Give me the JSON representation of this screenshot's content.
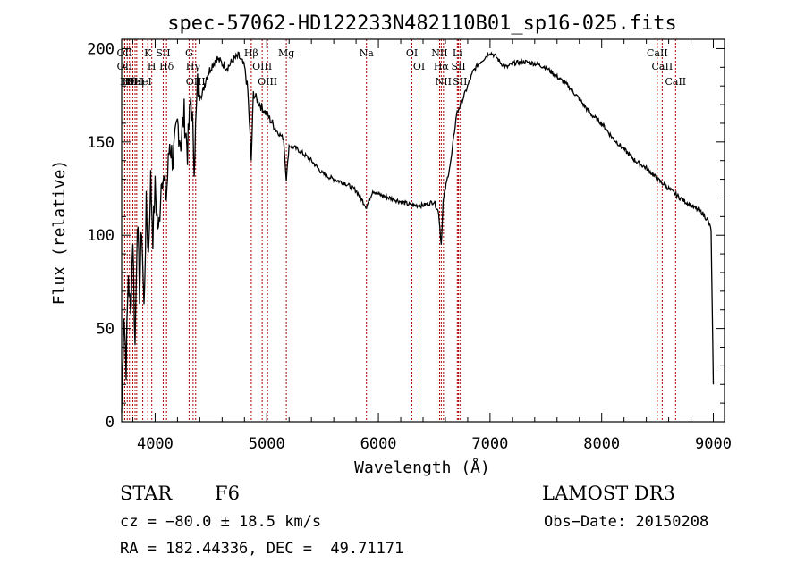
{
  "chart_data": {
    "type": "line",
    "title": "spec-57062-HD122233N482110B01_sp16-025.fits",
    "xlabel": "Wavelength (Å)",
    "ylabel": "Flux (relative)",
    "xlim": [
      3700,
      9100
    ],
    "ylim": [
      0,
      205
    ],
    "xticks": [
      4000,
      5000,
      6000,
      7000,
      8000,
      9000
    ],
    "yticks": [
      0,
      50,
      100,
      150,
      200
    ],
    "grid": false,
    "line_color": "#000000",
    "marker_color": "#aa0000",
    "series": [
      {
        "x": [
          3700,
          3720,
          3740,
          3760,
          3780,
          3800,
          3820,
          3840,
          3860,
          3880,
          3900,
          3920,
          3940,
          3960,
          3980,
          4000,
          4030,
          4060,
          4100,
          4130,
          4160,
          4200,
          4230,
          4260,
          4290,
          4320,
          4350,
          4380,
          4420,
          4460,
          4500,
          4550,
          4600,
          4650,
          4700,
          4750,
          4800,
          4830,
          4861,
          4880,
          4920,
          4960,
          5000,
          5050,
          5100,
          5150,
          5175,
          5200,
          5250,
          5300,
          5400,
          5500,
          5600,
          5700,
          5800,
          5893,
          5950,
          6000,
          6100,
          6200,
          6300,
          6400,
          6500,
          6540,
          6563,
          6580,
          6600,
          6650,
          6700,
          6750,
          6800,
          6850,
          6900,
          6950,
          7000,
          7050,
          7100,
          7150,
          7200,
          7300,
          7400,
          7500,
          7600,
          7700,
          7800,
          7900,
          8000,
          8100,
          8200,
          8300,
          8400,
          8500,
          8600,
          8700,
          8800,
          8900,
          8950,
          8980,
          8990,
          9000
        ],
        "y": [
          5,
          60,
          30,
          80,
          55,
          100,
          40,
          110,
          70,
          105,
          60,
          115,
          90,
          130,
          100,
          125,
          100,
          135,
          120,
          150,
          140,
          160,
          150,
          165,
          145,
          175,
          140,
          180,
          175,
          185,
          190,
          195,
          192,
          190,
          194,
          196,
          190,
          178,
          140,
          176,
          172,
          168,
          165,
          160,
          155,
          152,
          130,
          148,
          147,
          145,
          140,
          133,
          130,
          128,
          124,
          115,
          124,
          122,
          120,
          118,
          116,
          116,
          118,
          112,
          95,
          118,
          125,
          140,
          165,
          172,
          180,
          188,
          192,
          195,
          198,
          196,
          192,
          190,
          192,
          193,
          192,
          190,
          185,
          180,
          173,
          165,
          160,
          152,
          146,
          140,
          136,
          130,
          125,
          120,
          116,
          112,
          108,
          103,
          60,
          20
        ]
      }
    ],
    "lines": [
      {
        "x": 3750,
        "label": "H9"
      },
      {
        "x": 3727,
        "label": "OII"
      },
      {
        "x": 3728,
        "label": "OII"
      },
      {
        "x": 3770,
        "label": "Hθ"
      },
      {
        "x": 3800,
        "label": "Hε"
      },
      {
        "x": 3820,
        "label": "HeI"
      },
      {
        "x": 3835,
        "label": "Hη"
      },
      {
        "x": 3889,
        "label": "HeI"
      },
      {
        "x": 3934,
        "label": "K"
      },
      {
        "x": 3970,
        "label": "H"
      },
      {
        "x": 4072,
        "label": "SII"
      },
      {
        "x": 4102,
        "label": "Hδ"
      },
      {
        "x": 4304,
        "label": "G"
      },
      {
        "x": 4340,
        "label": "Hγ"
      },
      {
        "x": 4363,
        "label": "OIII"
      },
      {
        "x": 4861,
        "label": "Hβ"
      },
      {
        "x": 4959,
        "label": "OIII"
      },
      {
        "x": 5007,
        "label": "OIII"
      },
      {
        "x": 5175,
        "label": "Mg"
      },
      {
        "x": 5893,
        "label": "Na"
      },
      {
        "x": 6300,
        "label": "OI"
      },
      {
        "x": 6364,
        "label": "OI"
      },
      {
        "x": 6548,
        "label": "NII"
      },
      {
        "x": 6563,
        "label": "Hα"
      },
      {
        "x": 6583,
        "label": "NII"
      },
      {
        "x": 6707,
        "label": "Li"
      },
      {
        "x": 6717,
        "label": "SII"
      },
      {
        "x": 6731,
        "label": "SII"
      },
      {
        "x": 8498,
        "label": "CaII"
      },
      {
        "x": 8542,
        "label": "CaII"
      },
      {
        "x": 8662,
        "label": "CaII"
      }
    ]
  },
  "info": {
    "star_label": "STAR",
    "spectral_type": "F6",
    "survey": "LAMOST DR3",
    "cz": "cz = −80.0 ± 18.5 km/s",
    "obs_date": "Obs−Date: 20150208",
    "radec": "RA = 182.44336, DEC =  49.71171"
  }
}
